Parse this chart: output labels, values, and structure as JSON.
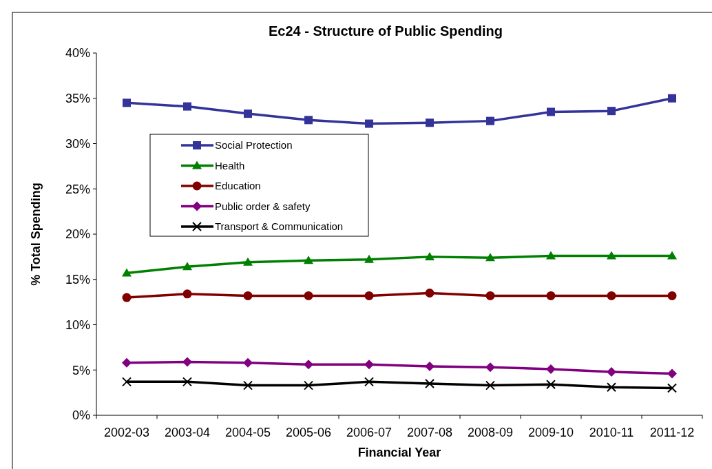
{
  "chart_data": {
    "type": "line",
    "title": "Ec24 - Structure of Public Spending",
    "xlabel": "Financial Year",
    "ylabel": "% Total Spending",
    "categories": [
      "2002-03",
      "2003-04",
      "2004-05",
      "2005-06",
      "2006-07",
      "2007-08",
      "2008-09",
      "2009-10",
      "2010-11",
      "2011-12"
    ],
    "ylim": [
      0,
      40
    ],
    "yticks": [
      {
        "value": 0,
        "label": "0%"
      },
      {
        "value": 5,
        "label": "5%"
      },
      {
        "value": 10,
        "label": "10%"
      },
      {
        "value": 15,
        "label": "15%"
      },
      {
        "value": 20,
        "label": "20%"
      },
      {
        "value": 25,
        "label": "25%"
      },
      {
        "value": 30,
        "label": "30%"
      },
      {
        "value": 35,
        "label": "35%"
      },
      {
        "value": 40,
        "label": "40%"
      }
    ],
    "grid": false,
    "legend": "left",
    "line_style": "solid",
    "series": [
      {
        "name": "Social Protection",
        "color": "#333399",
        "marker": "square",
        "values": [
          34.5,
          34.1,
          33.3,
          32.6,
          32.2,
          32.3,
          32.5,
          33.5,
          33.6,
          35.0
        ]
      },
      {
        "name": "Health",
        "color": "#008000",
        "marker": "triangle",
        "values": [
          15.7,
          16.4,
          16.9,
          17.1,
          17.2,
          17.5,
          17.4,
          17.6,
          17.6,
          17.6
        ]
      },
      {
        "name": "Education",
        "color": "#800000",
        "marker": "circle",
        "values": [
          13.0,
          13.4,
          13.2,
          13.2,
          13.2,
          13.5,
          13.2,
          13.2,
          13.2,
          13.2
        ]
      },
      {
        "name": "Public order & safety",
        "color": "#800080",
        "marker": "diamond",
        "values": [
          5.8,
          5.9,
          5.8,
          5.6,
          5.6,
          5.4,
          5.3,
          5.1,
          4.8,
          4.6
        ]
      },
      {
        "name": "Transport & Communication",
        "color": "#000000",
        "marker": "cross",
        "values": [
          3.7,
          3.7,
          3.3,
          3.3,
          3.7,
          3.5,
          3.3,
          3.4,
          3.1,
          3.0
        ]
      }
    ]
  }
}
